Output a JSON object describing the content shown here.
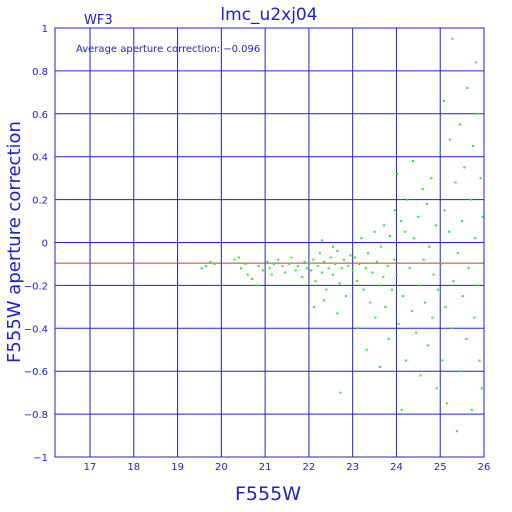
{
  "chart_data": {
    "type": "scatter",
    "title": "lmc_u2xj04",
    "subtitle": "WF3",
    "annotation": "Average aperture correction: −0.096",
    "xlabel": "F555W",
    "ylabel": "F555W aperture correction",
    "xlim": [
      16.2,
      26
    ],
    "ylim": [
      -1,
      1
    ],
    "x_ticks": [
      17,
      18,
      19,
      20,
      21,
      22,
      23,
      24,
      25,
      26
    ],
    "y_ticks": [
      -1,
      -0.8,
      -0.6,
      -0.4,
      -0.2,
      0,
      0.2,
      0.4,
      0.6,
      0.8,
      1
    ],
    "x_tick_labels": [
      "17",
      "18",
      "19",
      "20",
      "21",
      "22",
      "23",
      "24",
      "25",
      "26"
    ],
    "y_tick_labels": [
      "−1",
      "−0.8",
      "−0.6",
      "−0.4",
      "−0.2",
      "0",
      "0.2",
      "0.4",
      "0.6",
      "0.8",
      "1"
    ],
    "grid": true,
    "reference_line": {
      "y": -0.096,
      "color": "#c0402a"
    },
    "colors": {
      "axis": "#2020d0",
      "points": "#22ee22",
      "reference": "#c0402a"
    },
    "series": [
      {
        "points": [
          [
            19.55,
            -0.12
          ],
          [
            19.65,
            -0.11
          ],
          [
            19.75,
            -0.09
          ],
          [
            19.85,
            -0.1
          ],
          [
            20.3,
            -0.08
          ],
          [
            20.4,
            -0.07
          ],
          [
            20.45,
            -0.12
          ],
          [
            20.55,
            -0.1
          ],
          [
            20.6,
            -0.15
          ],
          [
            20.7,
            -0.17
          ],
          [
            20.8,
            -0.2
          ],
          [
            20.85,
            -0.11
          ],
          [
            20.95,
            -0.13
          ],
          [
            21.05,
            -0.09
          ],
          [
            21.1,
            -0.12
          ],
          [
            21.15,
            -0.15
          ],
          [
            21.2,
            -0.1
          ],
          [
            21.3,
            -0.08
          ],
          [
            21.4,
            -0.11
          ],
          [
            21.45,
            -0.14
          ],
          [
            21.55,
            -0.1
          ],
          [
            21.6,
            -0.07
          ],
          [
            21.7,
            -0.13
          ],
          [
            21.75,
            -0.11
          ],
          [
            21.85,
            -0.16
          ],
          [
            21.9,
            -0.09
          ],
          [
            21.95,
            -0.12
          ],
          [
            22.0,
            -0.1
          ],
          [
            22.05,
            -0.13
          ],
          [
            22.1,
            -0.08
          ],
          [
            22.15,
            -0.18
          ],
          [
            22.2,
            -0.11
          ],
          [
            22.25,
            -0.05
          ],
          [
            22.3,
            -0.14
          ],
          [
            22.35,
            -0.09
          ],
          [
            22.4,
            -0.22
          ],
          [
            22.45,
            -0.12
          ],
          [
            22.5,
            -0.07
          ],
          [
            22.55,
            -0.15
          ],
          [
            22.6,
            -0.1
          ],
          [
            22.65,
            -0.04
          ],
          [
            22.7,
            -0.19
          ],
          [
            22.75,
            -0.12
          ],
          [
            22.8,
            -0.08
          ],
          [
            22.85,
            -0.25
          ],
          [
            22.9,
            -0.11
          ],
          [
            22.95,
            -0.06
          ],
          [
            22.12,
            -0.3
          ],
          [
            22.35,
            -0.27
          ],
          [
            22.55,
            -0.02
          ],
          [
            22.72,
            -0.7
          ],
          [
            22.65,
            -0.33
          ],
          [
            22.3,
            0.01
          ],
          [
            23.0,
            -0.13
          ],
          [
            23.05,
            -0.07
          ],
          [
            23.1,
            -0.18
          ],
          [
            23.12,
            -0.4
          ],
          [
            23.15,
            -0.1
          ],
          [
            23.2,
            0.02
          ],
          [
            23.25,
            -0.22
          ],
          [
            23.3,
            -0.12
          ],
          [
            23.32,
            -0.5
          ],
          [
            23.35,
            -0.05
          ],
          [
            23.4,
            -0.28
          ],
          [
            23.45,
            -0.14
          ],
          [
            23.5,
            0.05
          ],
          [
            23.52,
            -0.35
          ],
          [
            23.55,
            -0.09
          ],
          [
            23.6,
            -0.2
          ],
          [
            23.62,
            -0.58
          ],
          [
            23.65,
            -0.02
          ],
          [
            23.7,
            -0.16
          ],
          [
            23.72,
            0.08
          ],
          [
            23.75,
            -0.3
          ],
          [
            23.8,
            -0.11
          ],
          [
            23.82,
            -0.45
          ],
          [
            23.85,
            0.03
          ],
          [
            23.9,
            -0.22
          ],
          [
            23.95,
            -0.08
          ],
          [
            23.97,
            0.15
          ],
          [
            24.0,
            -0.15
          ],
          [
            24.02,
            0.32
          ],
          [
            24.05,
            -0.38
          ],
          [
            24.1,
            0.1
          ],
          [
            24.12,
            -0.78
          ],
          [
            24.15,
            -0.25
          ],
          [
            24.2,
            0.05
          ],
          [
            24.22,
            -0.55
          ],
          [
            24.25,
            0.2
          ],
          [
            24.3,
            -0.12
          ],
          [
            24.35,
            -0.32
          ],
          [
            24.38,
            0.38
          ],
          [
            24.4,
            0.02
          ],
          [
            24.45,
            -0.42
          ],
          [
            24.5,
            0.12
          ],
          [
            24.52,
            -0.2
          ],
          [
            24.55,
            -0.62
          ],
          [
            24.6,
            0.25
          ],
          [
            24.62,
            -0.08
          ],
          [
            24.65,
            -0.28
          ],
          [
            24.7,
            0.18
          ],
          [
            24.72,
            -0.48
          ],
          [
            24.75,
            -0.02
          ],
          [
            24.8,
            0.3
          ],
          [
            24.82,
            -0.35
          ],
          [
            24.85,
            -0.15
          ],
          [
            24.9,
            0.08
          ],
          [
            24.92,
            -0.68
          ],
          [
            24.95,
            -0.22
          ],
          [
            25.0,
            0.42
          ],
          [
            25.02,
            -0.1
          ],
          [
            25.05,
            -0.55
          ],
          [
            25.08,
            0.66
          ],
          [
            25.1,
            0.15
          ],
          [
            25.12,
            -0.3
          ],
          [
            25.15,
            -0.75
          ],
          [
            25.2,
            0.05
          ],
          [
            25.22,
            0.48
          ],
          [
            25.25,
            -0.4
          ],
          [
            25.28,
            0.95
          ],
          [
            25.3,
            -0.18
          ],
          [
            25.35,
            0.28
          ],
          [
            25.38,
            -0.88
          ],
          [
            25.4,
            -0.05
          ],
          [
            25.45,
            0.55
          ],
          [
            25.48,
            -0.6
          ],
          [
            25.5,
            0.1
          ],
          [
            25.52,
            -0.25
          ],
          [
            25.55,
            0.35
          ],
          [
            25.6,
            -0.45
          ],
          [
            25.62,
            0.72
          ],
          [
            25.65,
            -0.12
          ],
          [
            25.7,
            0.2
          ],
          [
            25.72,
            -0.78
          ],
          [
            25.75,
            0.45
          ],
          [
            25.78,
            -0.35
          ],
          [
            25.8,
            0.02
          ],
          [
            25.82,
            0.84
          ],
          [
            25.85,
            -0.2
          ],
          [
            25.88,
            0.6
          ],
          [
            25.9,
            -0.55
          ],
          [
            25.92,
            0.3
          ],
          [
            25.95,
            -0.68
          ],
          [
            25.97,
            0.12
          ]
        ]
      }
    ]
  }
}
